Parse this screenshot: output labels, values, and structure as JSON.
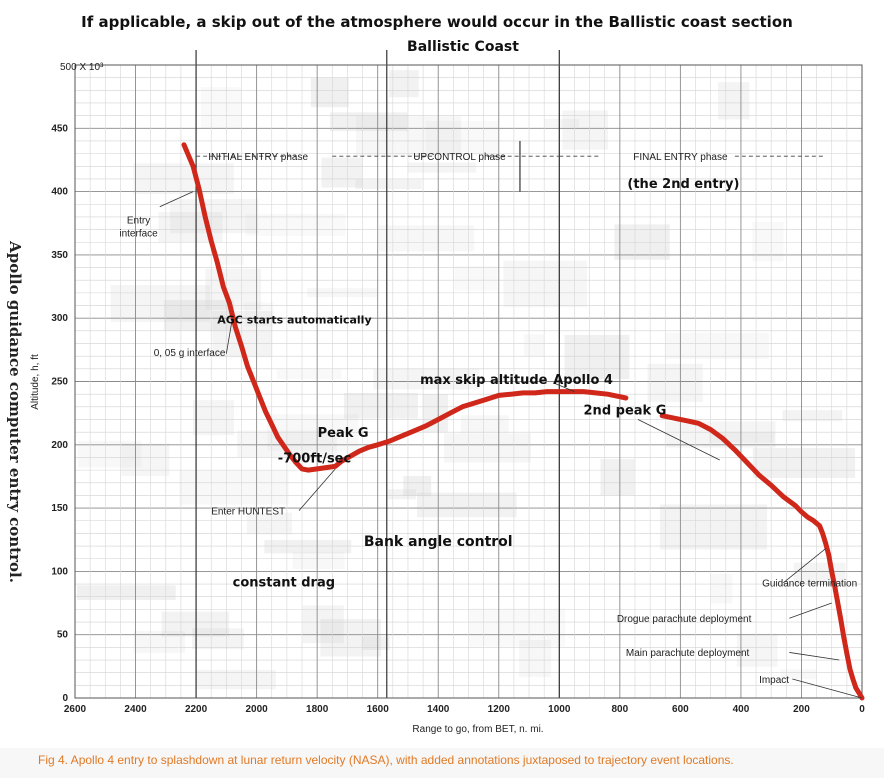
{
  "chart_data": {
    "type": "line",
    "title": "If applicable, a skip out of the atmosphere would occur in the Ballistic coast section",
    "subtitle": "Ballistic Coast",
    "side_title": "Apollo guidance computer entry control.",
    "xlabel": "Range to go, from BET, n. mi.",
    "ylabel": "Altitude, h, ft",
    "y_unit_label": "500 X 10³",
    "xlim": [
      2600,
      0
    ],
    "ylim": [
      0,
      500
    ],
    "x_reversed": true,
    "grid": true,
    "x_ticks": [
      "2600",
      "2400",
      "2200",
      "2000",
      "1800",
      "1600",
      "1400",
      "1200",
      "1000",
      "800",
      "600",
      "400",
      "200",
      "0"
    ],
    "y_ticks": [
      "0",
      "50",
      "100",
      "150",
      "200",
      "250",
      "300",
      "350",
      "400",
      "450"
    ],
    "series": [
      {
        "color": "#d0271b",
        "x": [
          2240,
          2210,
          2190,
          2170,
          2150,
          2130,
          2110,
          2090,
          2070,
          2050,
          2030,
          2010,
          1990,
          1970,
          1950,
          1930,
          1910,
          1890,
          1870,
          1850,
          1830,
          1800,
          1770,
          1740,
          1720,
          1690,
          1660,
          1630,
          1600,
          1560,
          1520,
          1480,
          1440,
          1400,
          1360,
          1320,
          1280,
          1240,
          1200,
          1160,
          1120,
          1080,
          1040,
          1000,
          960,
          920,
          880,
          840,
          800,
          780
        ],
        "y": [
          437,
          420,
          402,
          380,
          361,
          344,
          325,
          312,
          293,
          278,
          262,
          250,
          238,
          226,
          216,
          206,
          199,
          192,
          186,
          181,
          180,
          181,
          182,
          183,
          187,
          191,
          195,
          198,
          200,
          203,
          207,
          211,
          215,
          220,
          225,
          230,
          233,
          236,
          239,
          240,
          241,
          241,
          242,
          242,
          242,
          242,
          241,
          240,
          238,
          237
        ]
      },
      {
        "color": "#d0271b",
        "x": [
          660,
          620,
          580,
          540,
          500,
          460,
          420,
          380,
          340,
          300,
          260,
          220,
          200,
          180,
          160,
          140,
          130,
          120,
          110,
          100,
          90,
          80,
          70,
          60,
          50,
          40,
          30,
          20,
          10,
          0
        ],
        "y": [
          223,
          221,
          219,
          217,
          212,
          205,
          196,
          186,
          176,
          168,
          159,
          152,
          147,
          143,
          140,
          136,
          130,
          122,
          113,
          100,
          88,
          75,
          62,
          48,
          35,
          23,
          15,
          8,
          4,
          0
        ]
      }
    ],
    "phases": [
      {
        "label": "INITIAL ENTRY phase",
        "x_start": 2200,
        "x_end": 1570
      },
      {
        "label": "UPCONTROL phase",
        "x_start": 1570,
        "x_end": 1000
      },
      {
        "label": "FINAL ENTRY phase",
        "x_start": 1000,
        "x_end": 0,
        "note": "(the 2nd entry)"
      }
    ],
    "divider_x": [
      2200,
      1570,
      1000,
      1130
    ],
    "annotations": [
      {
        "text": "Entry interface",
        "x": 2210,
        "y": 400
      },
      {
        "text": "AGC starts automatically",
        "x": 2070,
        "y": 295
      },
      {
        "text": "0.05 g interface",
        "x": 2080,
        "y": 300
      },
      {
        "text": "Peak G",
        "x": 1600,
        "y": 200
      },
      {
        "text": "-700ft/sec",
        "x": 1820,
        "y": 190
      },
      {
        "text": "Enter HUNTEST",
        "x": 1740,
        "y": 181
      },
      {
        "text": "max skip altitude",
        "x": 950,
        "y": 242
      },
      {
        "text": "Apollo 4",
        "x": 900,
        "y": 242
      },
      {
        "text": "2nd peak G",
        "x": 470,
        "y": 188
      },
      {
        "text": "Bank angle control",
        "x": 1400,
        "y": 120
      },
      {
        "text": "constant drag",
        "x": 1900,
        "y": 95
      },
      {
        "text": "Guidance termination",
        "x": 120,
        "y": 118
      },
      {
        "text": "Drogue parachute deployment",
        "x": 100,
        "y": 75
      },
      {
        "text": "Main parachute deployment",
        "x": 75,
        "y": 30
      },
      {
        "text": "Impact",
        "x": 0,
        "y": 0
      }
    ]
  },
  "caption": "Fig 4. Apollo 4 entry to splashdown at lunar return velocity (NASA), with added annotations juxtaposed to trajectory event locations."
}
